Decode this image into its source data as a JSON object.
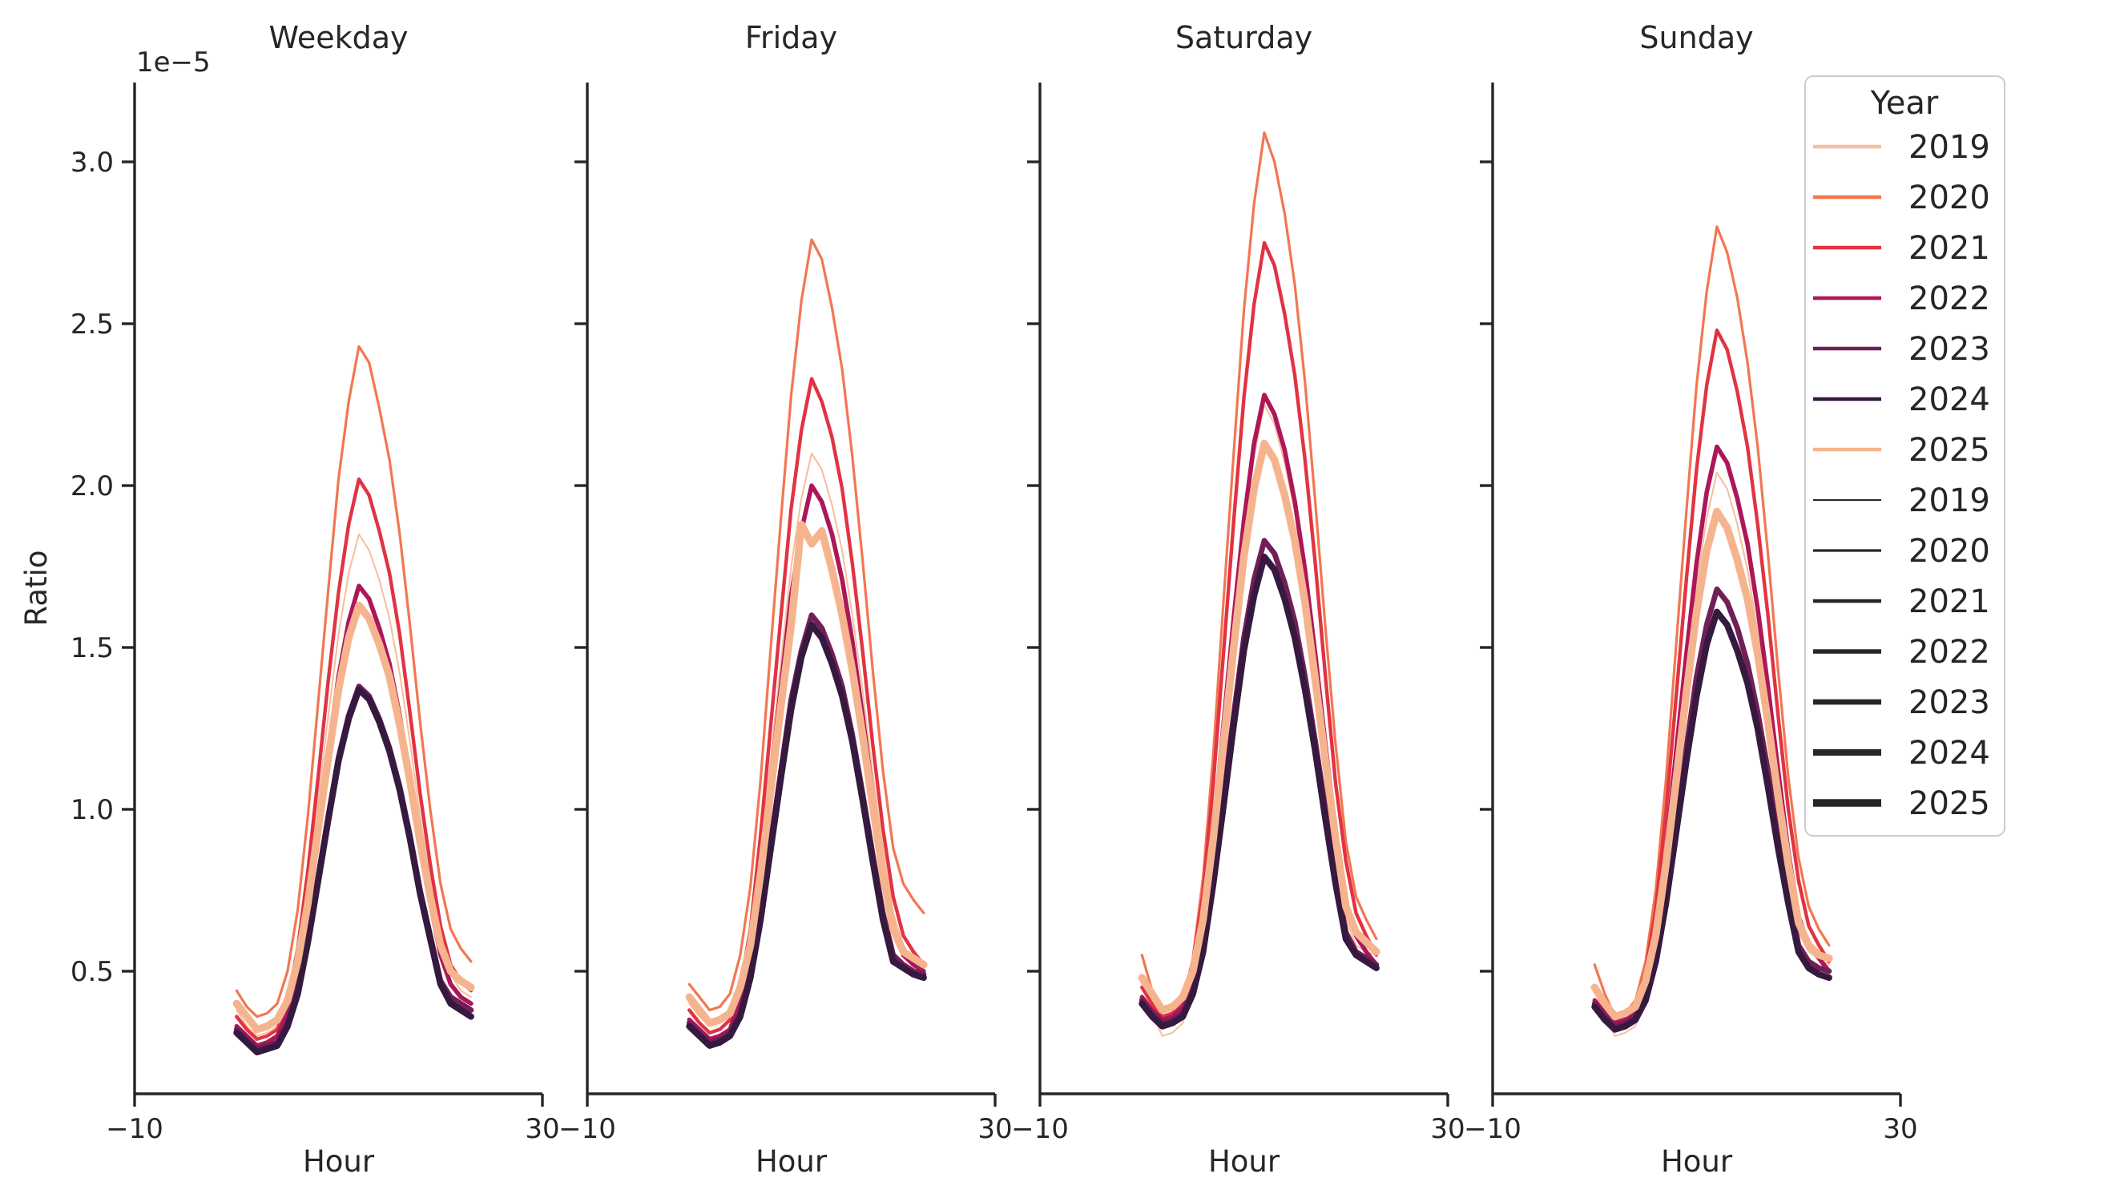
{
  "figure": {
    "background": "#ffffff",
    "axis_color": "#262626",
    "legend_border_color": "#cccccc"
  },
  "chart_data": {
    "type": "line",
    "xlabel": "Hour",
    "ylabel": "Ratio",
    "y_offset_label": "1e−5",
    "y_unit_multiplier": "1e-5",
    "xlim": [
      -10,
      30
    ],
    "ylim_e5": [
      0.12,
      3.25
    ],
    "x_tick_labels": [
      "−10",
      "30"
    ],
    "x_tick_values": [
      -10,
      30
    ],
    "y_tick_labels": [
      "0.5",
      "1.0",
      "1.5",
      "2.0",
      "2.5",
      "3.0"
    ],
    "y_tick_values": [
      0.5,
      1.0,
      1.5,
      2.0,
      2.5,
      3.0
    ],
    "grid": false,
    "hours": [
      0,
      1,
      2,
      3,
      4,
      5,
      6,
      7,
      8,
      9,
      10,
      11,
      12,
      13,
      14,
      15,
      16,
      17,
      18,
      19,
      20,
      21,
      22,
      23
    ],
    "series_style": {
      "colors": {
        "2019": "#f8bd9c",
        "2020": "#f37651",
        "2021": "#e13342",
        "2022": "#ad1759",
        "2023": "#701f57",
        "2024": "#35193e",
        "2025": "#f6b48e"
      },
      "widths": {
        "2019": 2,
        "2020": 3.2,
        "2021": 4.4,
        "2022": 5.6,
        "2023": 6.8,
        "2024": 8,
        "2025": 9.4
      }
    },
    "legend": {
      "title": "Year",
      "position": "upper right",
      "hue_entries": [
        {
          "label": "2019",
          "color": "#f8bd9c"
        },
        {
          "label": "2020",
          "color": "#f37651"
        },
        {
          "label": "2021",
          "color": "#e13342"
        },
        {
          "label": "2022",
          "color": "#ad1759"
        },
        {
          "label": "2023",
          "color": "#701f57"
        },
        {
          "label": "2024",
          "color": "#35193e"
        },
        {
          "label": "2025",
          "color": "#f6b48e"
        }
      ],
      "size_entries": [
        {
          "label": "2019",
          "width": 2
        },
        {
          "label": "2020",
          "width": 3.2
        },
        {
          "label": "2021",
          "width": 4.4
        },
        {
          "label": "2022",
          "width": 5.6
        },
        {
          "label": "2023",
          "width": 6.8
        },
        {
          "label": "2024",
          "width": 8
        },
        {
          "label": "2025",
          "width": 9.4
        }
      ]
    },
    "panels": [
      {
        "title": "Weekday",
        "series": [
          {
            "year": "2019",
            "values_e5": [
              0.38,
              0.33,
              0.3,
              0.31,
              0.33,
              0.41,
              0.55,
              0.77,
              1.03,
              1.29,
              1.54,
              1.73,
              1.85,
              1.8,
              1.71,
              1.59,
              1.42,
              1.21,
              0.98,
              0.78,
              0.61,
              0.49,
              0.44,
              0.42
            ]
          },
          {
            "year": "2020",
            "values_e5": [
              0.44,
              0.39,
              0.36,
              0.37,
              0.4,
              0.5,
              0.69,
              0.98,
              1.33,
              1.68,
              2.02,
              2.26,
              2.43,
              2.38,
              2.24,
              2.08,
              1.85,
              1.57,
              1.27,
              1.0,
              0.77,
              0.63,
              0.57,
              0.53
            ]
          },
          {
            "year": "2021",
            "values_e5": [
              0.36,
              0.32,
              0.29,
              0.3,
              0.32,
              0.41,
              0.57,
              0.81,
              1.1,
              1.4,
              1.67,
              1.88,
              2.02,
              1.97,
              1.86,
              1.73,
              1.54,
              1.3,
              1.05,
              0.83,
              0.64,
              0.52,
              0.47,
              0.44
            ]
          },
          {
            "year": "2022",
            "values_e5": [
              0.33,
              0.3,
              0.27,
              0.28,
              0.3,
              0.37,
              0.5,
              0.7,
              0.94,
              1.18,
              1.41,
              1.58,
              1.69,
              1.65,
              1.56,
              1.45,
              1.29,
              1.1,
              0.89,
              0.71,
              0.55,
              0.46,
              0.42,
              0.4
            ]
          },
          {
            "year": "2023",
            "values_e5": [
              0.32,
              0.29,
              0.26,
              0.27,
              0.28,
              0.34,
              0.44,
              0.6,
              0.79,
              0.98,
              1.16,
              1.29,
              1.38,
              1.35,
              1.28,
              1.19,
              1.07,
              0.92,
              0.75,
              0.61,
              0.47,
              0.42,
              0.4,
              0.38
            ]
          },
          {
            "year": "2024",
            "values_e5": [
              0.31,
              0.28,
              0.25,
              0.26,
              0.27,
              0.33,
              0.43,
              0.59,
              0.78,
              0.97,
              1.15,
              1.28,
              1.37,
              1.34,
              1.27,
              1.18,
              1.06,
              0.91,
              0.74,
              0.6,
              0.46,
              0.4,
              0.38,
              0.36
            ]
          },
          {
            "year": "2025",
            "values_e5": [
              0.4,
              0.36,
              0.32,
              0.33,
              0.35,
              0.41,
              0.53,
              0.71,
              0.94,
              1.16,
              1.37,
              1.53,
              1.63,
              1.59,
              1.51,
              1.41,
              1.26,
              1.09,
              0.9,
              0.73,
              0.58,
              0.5,
              0.47,
              0.45
            ]
          }
        ]
      },
      {
        "title": "Friday",
        "series": [
          {
            "year": "2019",
            "values_e5": [
              0.4,
              0.36,
              0.33,
              0.34,
              0.37,
              0.45,
              0.61,
              0.86,
              1.16,
              1.46,
              1.75,
              1.96,
              2.1,
              2.05,
              1.94,
              1.8,
              1.6,
              1.37,
              1.11,
              0.88,
              0.68,
              0.58,
              0.53,
              0.5
            ]
          },
          {
            "year": "2020",
            "values_e5": [
              0.46,
              0.42,
              0.38,
              0.39,
              0.43,
              0.55,
              0.76,
              1.09,
              1.5,
              1.9,
              2.28,
              2.57,
              2.76,
              2.7,
              2.55,
              2.36,
              2.09,
              1.77,
              1.43,
              1.12,
              0.88,
              0.77,
              0.72,
              0.68
            ]
          },
          {
            "year": "2021",
            "values_e5": [
              0.38,
              0.34,
              0.31,
              0.32,
              0.35,
              0.45,
              0.63,
              0.92,
              1.26,
              1.6,
              1.93,
              2.17,
              2.33,
              2.26,
              2.15,
              1.99,
              1.76,
              1.49,
              1.2,
              0.94,
              0.73,
              0.61,
              0.56,
              0.52
            ]
          },
          {
            "year": "2022",
            "values_e5": [
              0.35,
              0.32,
              0.29,
              0.3,
              0.32,
              0.41,
              0.56,
              0.8,
              1.09,
              1.38,
              1.66,
              1.86,
              2.0,
              1.95,
              1.85,
              1.71,
              1.52,
              1.29,
              1.04,
              0.82,
              0.64,
              0.55,
              0.52,
              0.5
            ]
          },
          {
            "year": "2023",
            "values_e5": [
              0.34,
              0.31,
              0.28,
              0.29,
              0.31,
              0.37,
              0.49,
              0.68,
              0.9,
              1.12,
              1.34,
              1.49,
              1.6,
              1.56,
              1.48,
              1.38,
              1.23,
              1.05,
              0.86,
              0.68,
              0.55,
              0.52,
              0.5,
              0.49
            ]
          },
          {
            "year": "2024",
            "values_e5": [
              0.33,
              0.3,
              0.27,
              0.28,
              0.3,
              0.36,
              0.48,
              0.66,
              0.88,
              1.1,
              1.31,
              1.47,
              1.57,
              1.53,
              1.45,
              1.35,
              1.21,
              1.03,
              0.84,
              0.66,
              0.53,
              0.51,
              0.49,
              0.48
            ]
          },
          {
            "year": "2025",
            "values_e5": [
              0.42,
              0.38,
              0.34,
              0.35,
              0.37,
              0.45,
              0.58,
              0.8,
              1.06,
              1.32,
              1.57,
              1.88,
              1.82,
              1.86,
              1.74,
              1.6,
              1.43,
              1.23,
              1.01,
              0.8,
              0.63,
              0.56,
              0.54,
              0.52
            ]
          }
        ]
      },
      {
        "title": "Saturday",
        "series": [
          {
            "year": "2019",
            "values_e5": [
              0.46,
              0.37,
              0.3,
              0.31,
              0.34,
              0.44,
              0.61,
              0.89,
              1.22,
              1.55,
              1.86,
              2.09,
              2.25,
              2.19,
              2.07,
              1.92,
              1.7,
              1.44,
              1.16,
              0.89,
              0.66,
              0.58,
              0.56,
              0.55
            ]
          },
          {
            "year": "2020",
            "values_e5": [
              0.55,
              0.44,
              0.35,
              0.36,
              0.4,
              0.54,
              0.79,
              1.17,
              1.64,
              2.1,
              2.54,
              2.87,
              3.09,
              3.0,
              2.84,
              2.62,
              2.32,
              1.95,
              1.56,
              1.2,
              0.9,
              0.73,
              0.66,
              0.6
            ]
          },
          {
            "year": "2021",
            "values_e5": [
              0.45,
              0.4,
              0.36,
              0.37,
              0.41,
              0.53,
              0.74,
              1.08,
              1.48,
              1.89,
              2.27,
              2.56,
              2.75,
              2.68,
              2.53,
              2.34,
              2.08,
              1.76,
              1.41,
              1.08,
              0.84,
              0.68,
              0.61,
              0.55
            ]
          },
          {
            "year": "2022",
            "values_e5": [
              0.42,
              0.38,
              0.35,
              0.36,
              0.39,
              0.49,
              0.66,
              0.93,
              1.26,
              1.59,
              1.89,
              2.13,
              2.28,
              2.22,
              2.11,
              1.95,
              1.74,
              1.48,
              1.2,
              0.93,
              0.71,
              0.61,
              0.56,
              0.52
            ]
          },
          {
            "year": "2023",
            "values_e5": [
              0.41,
              0.37,
              0.34,
              0.35,
              0.37,
              0.44,
              0.58,
              0.79,
              1.04,
              1.29,
              1.53,
              1.71,
              1.83,
              1.79,
              1.7,
              1.58,
              1.41,
              1.21,
              1.0,
              0.79,
              0.62,
              0.56,
              0.54,
              0.52
            ]
          },
          {
            "year": "2024",
            "values_e5": [
              0.4,
              0.36,
              0.33,
              0.34,
              0.36,
              0.43,
              0.56,
              0.77,
              1.01,
              1.26,
              1.49,
              1.66,
              1.78,
              1.74,
              1.65,
              1.53,
              1.37,
              1.18,
              0.97,
              0.77,
              0.6,
              0.55,
              0.53,
              0.51
            ]
          },
          {
            "year": "2025",
            "values_e5": [
              0.48,
              0.43,
              0.38,
              0.39,
              0.42,
              0.5,
              0.66,
              0.91,
              1.2,
              1.5,
              1.78,
              1.99,
              2.13,
              2.08,
              1.97,
              1.83,
              1.64,
              1.4,
              1.15,
              0.91,
              0.7,
              0.62,
              0.59,
              0.56
            ]
          }
        ]
      },
      {
        "title": "Sunday",
        "series": [
          {
            "year": "2019",
            "values_e5": [
              0.44,
              0.36,
              0.3,
              0.31,
              0.33,
              0.42,
              0.58,
              0.82,
              1.12,
              1.41,
              1.69,
              1.9,
              2.04,
              1.99,
              1.88,
              1.74,
              1.55,
              1.32,
              1.07,
              0.82,
              0.62,
              0.56,
              0.54,
              0.52
            ]
          },
          {
            "year": "2020",
            "values_e5": [
              0.52,
              0.43,
              0.36,
              0.37,
              0.41,
              0.53,
              0.75,
              1.09,
              1.51,
              1.92,
              2.31,
              2.6,
              2.8,
              2.72,
              2.58,
              2.38,
              2.12,
              1.79,
              1.43,
              1.1,
              0.85,
              0.7,
              0.63,
              0.58
            ]
          },
          {
            "year": "2021",
            "values_e5": [
              0.44,
              0.39,
              0.35,
              0.36,
              0.39,
              0.5,
              0.69,
              0.99,
              1.35,
              1.71,
              2.05,
              2.31,
              2.48,
              2.42,
              2.29,
              2.12,
              1.88,
              1.6,
              1.29,
              1.0,
              0.78,
              0.64,
              0.58,
              0.53
            ]
          },
          {
            "year": "2022",
            "values_e5": [
              0.41,
              0.37,
              0.34,
              0.35,
              0.38,
              0.46,
              0.62,
              0.87,
              1.18,
              1.48,
              1.76,
              1.98,
              2.12,
              2.07,
              1.96,
              1.82,
              1.62,
              1.38,
              1.12,
              0.87,
              0.67,
              0.58,
              0.54,
              0.5
            ]
          },
          {
            "year": "2023",
            "values_e5": [
              0.4,
              0.36,
              0.33,
              0.34,
              0.36,
              0.42,
              0.55,
              0.74,
              0.96,
              1.19,
              1.41,
              1.57,
              1.68,
              1.64,
              1.56,
              1.45,
              1.3,
              1.12,
              0.92,
              0.74,
              0.58,
              0.53,
              0.51,
              0.5
            ]
          },
          {
            "year": "2024",
            "values_e5": [
              0.39,
              0.35,
              0.32,
              0.33,
              0.35,
              0.41,
              0.53,
              0.71,
              0.93,
              1.15,
              1.35,
              1.51,
              1.61,
              1.57,
              1.49,
              1.39,
              1.25,
              1.07,
              0.88,
              0.71,
              0.56,
              0.51,
              0.49,
              0.48
            ]
          },
          {
            "year": "2025",
            "values_e5": [
              0.45,
              0.4,
              0.36,
              0.37,
              0.39,
              0.47,
              0.61,
              0.83,
              1.09,
              1.36,
              1.61,
              1.8,
              1.92,
              1.87,
              1.77,
              1.65,
              1.48,
              1.27,
              1.04,
              0.83,
              0.65,
              0.58,
              0.55,
              0.54
            ]
          }
        ]
      }
    ]
  }
}
